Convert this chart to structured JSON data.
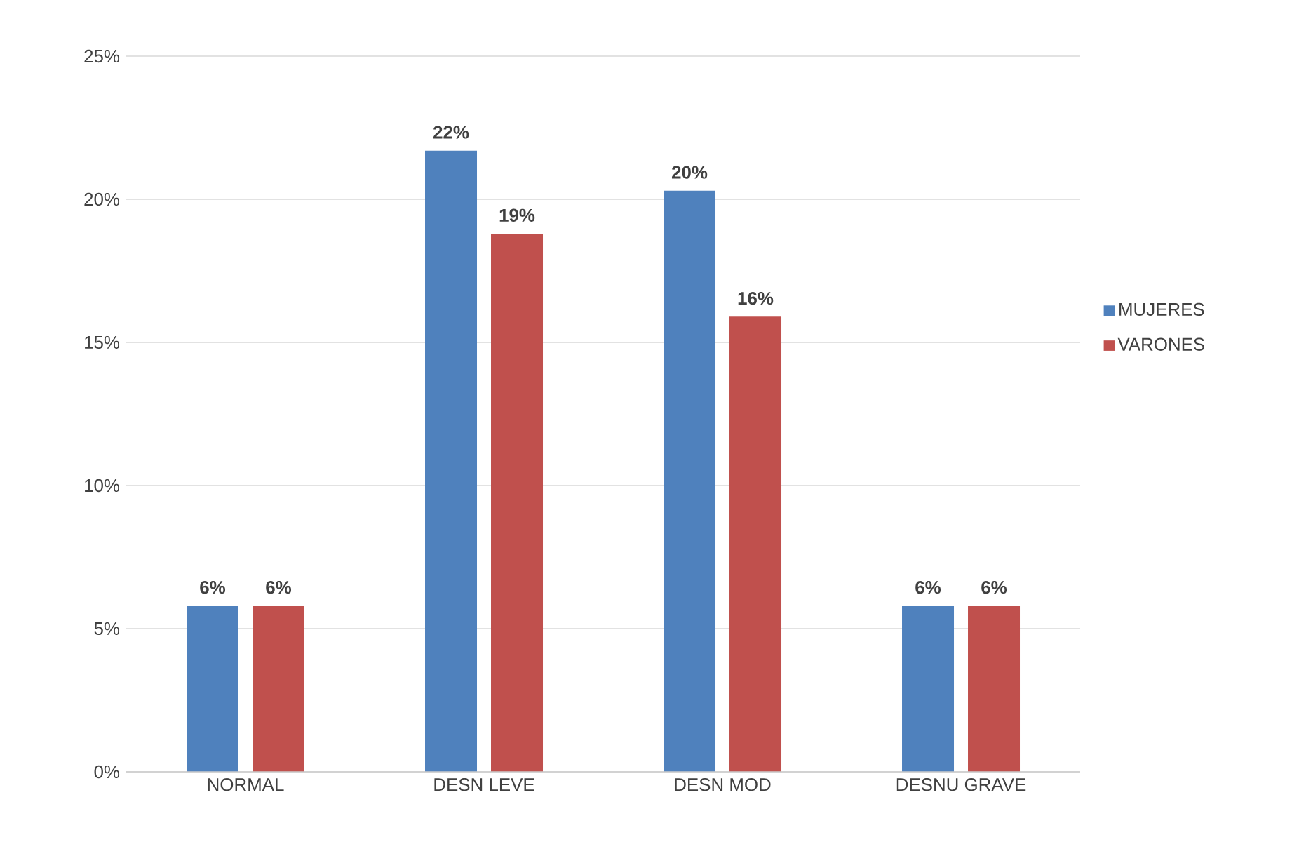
{
  "chart_data": {
    "type": "bar",
    "categories": [
      "NORMAL",
      "DESN LEVE",
      "DESN MOD",
      "DESNU GRAVE"
    ],
    "series": [
      {
        "name": "MUJERES",
        "color": "#4f81bd",
        "values": [
          5.8,
          21.7,
          20.3,
          5.8
        ],
        "value_labels": [
          "6%",
          "22%",
          "20%",
          "6%"
        ]
      },
      {
        "name": "VARONES",
        "color": "#c0504d",
        "values": [
          5.8,
          18.8,
          15.9,
          5.8
        ],
        "value_labels": [
          "6%",
          "19%",
          "16%",
          "6%"
        ]
      }
    ],
    "ylim": [
      0,
      25
    ],
    "yticks": [
      {
        "value": 0,
        "label": "0%"
      },
      {
        "value": 5,
        "label": "5%"
      },
      {
        "value": 10,
        "label": "10%"
      },
      {
        "value": 15,
        "label": "15%"
      },
      {
        "value": 20,
        "label": "20%"
      },
      {
        "value": 25,
        "label": "25%"
      }
    ],
    "grid": "y",
    "legend": "right"
  }
}
